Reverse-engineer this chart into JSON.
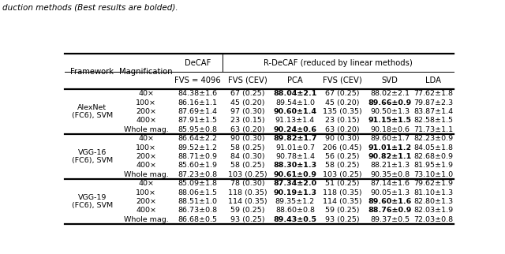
{
  "title_text": "duction methods (Best results are bolded).",
  "groups": [
    {
      "framework": "AlexNet\n(FC6), SVM",
      "rows": [
        [
          "40×",
          "84.38±1.6",
          "67 (0.25)",
          "88.04±2.1",
          "67 (0.25)",
          "88.02±2.1",
          "77.62±1.8"
        ],
        [
          "100×",
          "86.16±1.1",
          "45 (0.20)",
          "89.54±1.0",
          "45 (0.20)",
          "89.66±0.9",
          "79.87±2.3"
        ],
        [
          "200×",
          "87.69±1.4",
          "97 (0.30)",
          "90.60±1.4",
          "135 (0.35)",
          "90.50±1.3",
          "83.87±1.4"
        ],
        [
          "400×",
          "87.91±1.5",
          "23 (0.15)",
          "91.13±1.4",
          "23 (0.15)",
          "91.15±1.5",
          "82.58±1.5"
        ],
        [
          "Whole mag.",
          "85.95±0.8",
          "63 (0.20)",
          "90.24±0.6",
          "63 (0.20)",
          "90.18±0.6",
          "71.73±1.1"
        ]
      ],
      "bold_col": [
        4,
        6,
        4,
        6,
        4
      ]
    },
    {
      "framework": "VGG-16\n(FC6), SVM",
      "rows": [
        [
          "40×",
          "86.64±2.2",
          "90 (0.30)",
          "89.82±1.7",
          "90 (0.30)",
          "89.60±1.7",
          "82.23±0.9"
        ],
        [
          "100×",
          "89.52±1.2",
          "58 (0.25)",
          "91.01±0.7",
          "206 (0.45)",
          "91.01±1.2",
          "84.05±1.8"
        ],
        [
          "200×",
          "88.71±0.9",
          "84 (0.30)",
          "90.78±1.4",
          "56 (0.25)",
          "90.82±1.1",
          "82.68±0.9"
        ],
        [
          "400×",
          "85.60±1.9",
          "58 (0.25)",
          "88.30±1.3",
          "58 (0.25)",
          "88.21±1.3",
          "81.95±1.9"
        ],
        [
          "Whole mag.",
          "87.23±0.8",
          "103 (0.25)",
          "90.61±0.9",
          "103 (0.25)",
          "90.35±0.8",
          "73.10±1.0"
        ]
      ],
      "bold_col": [
        4,
        6,
        6,
        4,
        4
      ]
    },
    {
      "framework": "VGG-19\n(FC6), SVM",
      "rows": [
        [
          "40×",
          "85.09±1.8",
          "78 (0.30)",
          "87.34±2.0",
          "51 (0.25)",
          "87.14±1.6",
          "79.62±1.9"
        ],
        [
          "100×",
          "88.06±1.5",
          "118 (0.35)",
          "90.19±1.3",
          "118 (0.35)",
          "90.05±1.3",
          "81.10±1.3"
        ],
        [
          "200×",
          "88.51±1.0",
          "114 (0.35)",
          "89.35±1.2",
          "114 (0.35)",
          "89.60±1.6",
          "82.80±1.3"
        ],
        [
          "400×",
          "86.73±0.8",
          "59 (0.25)",
          "88.60±0.8",
          "59 (0.25)",
          "88.76±0.9",
          "82.03±1.9"
        ],
        [
          "Whole mag.",
          "86.68±0.5",
          "93 (0.25)",
          "89.43±0.5",
          "93 (0.25)",
          "89.37±0.5",
          "72.03±0.8"
        ]
      ],
      "bold_col": [
        4,
        4,
        6,
        6,
        4
      ]
    }
  ],
  "bg_color": "#ffffff",
  "font_size": 6.8,
  "header_font_size": 7.2,
  "title_font_size": 7.5
}
